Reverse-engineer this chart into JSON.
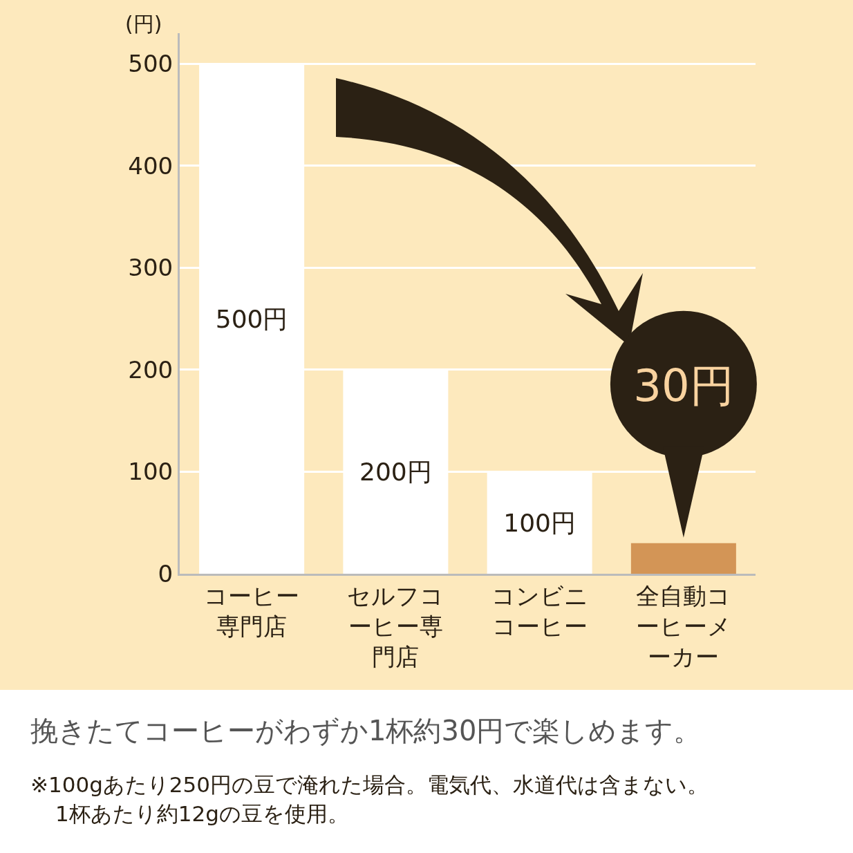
{
  "chart_data": {
    "type": "bar",
    "ylabel": "(円)",
    "categories": [
      "コーヒー専門店",
      "セルフコーヒー専門店",
      "コンビニコーヒー",
      "全自動コーヒーメーカー"
    ],
    "values": [
      500,
      200,
      100,
      30
    ],
    "colors": [
      "#ffffff",
      "#ffffff",
      "#ffffff",
      "#d39556"
    ],
    "value_labels": [
      "500円",
      "200円",
      "100円",
      "30円"
    ],
    "ylim": [
      0,
      530
    ],
    "yticks": [
      0,
      100,
      200,
      300,
      400,
      500
    ],
    "grid": "y",
    "annotations": [
      "挽きたてコーヒーがわずか1杯約30円で楽しめます。",
      "※100gあたり250円の豆で淹れた場合。電気代、水道代は含まない。1杯あたり約12gの豆を使用。"
    ]
  }
}
